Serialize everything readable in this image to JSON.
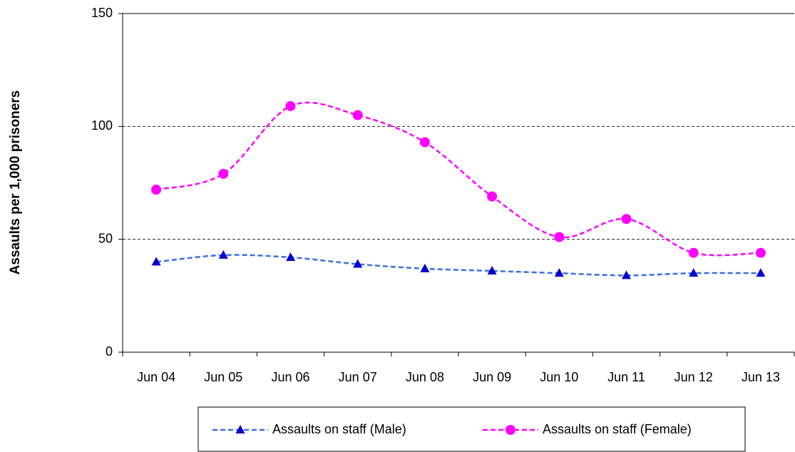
{
  "chart_data": {
    "type": "line",
    "ylabel": "Assaults per 1,000 prisoners",
    "categories": [
      "Jun 04",
      "Jun 05",
      "Jun 06",
      "Jun 07",
      "Jun 08",
      "Jun 09",
      "Jun 10",
      "Jun 11",
      "Jun 12",
      "Jun 13"
    ],
    "series": [
      {
        "name": "Assaults on staff (Male)",
        "color": "#3c6fe0",
        "marker_color": "#0000cc",
        "marker": "triangle",
        "values": [
          40,
          43,
          42,
          39,
          37,
          36,
          35,
          34,
          35,
          35
        ]
      },
      {
        "name": "Assaults on staff (Female)",
        "color": "#ff00ff",
        "marker_color": "#ff00ff",
        "marker": "circle",
        "values": [
          72,
          79,
          109,
          105,
          93,
          69,
          51,
          59,
          44,
          44
        ]
      }
    ],
    "ylim": [
      0,
      150
    ],
    "yticks": [
      0,
      50,
      100,
      150
    ],
    "grid": true,
    "legend": "bottom"
  }
}
